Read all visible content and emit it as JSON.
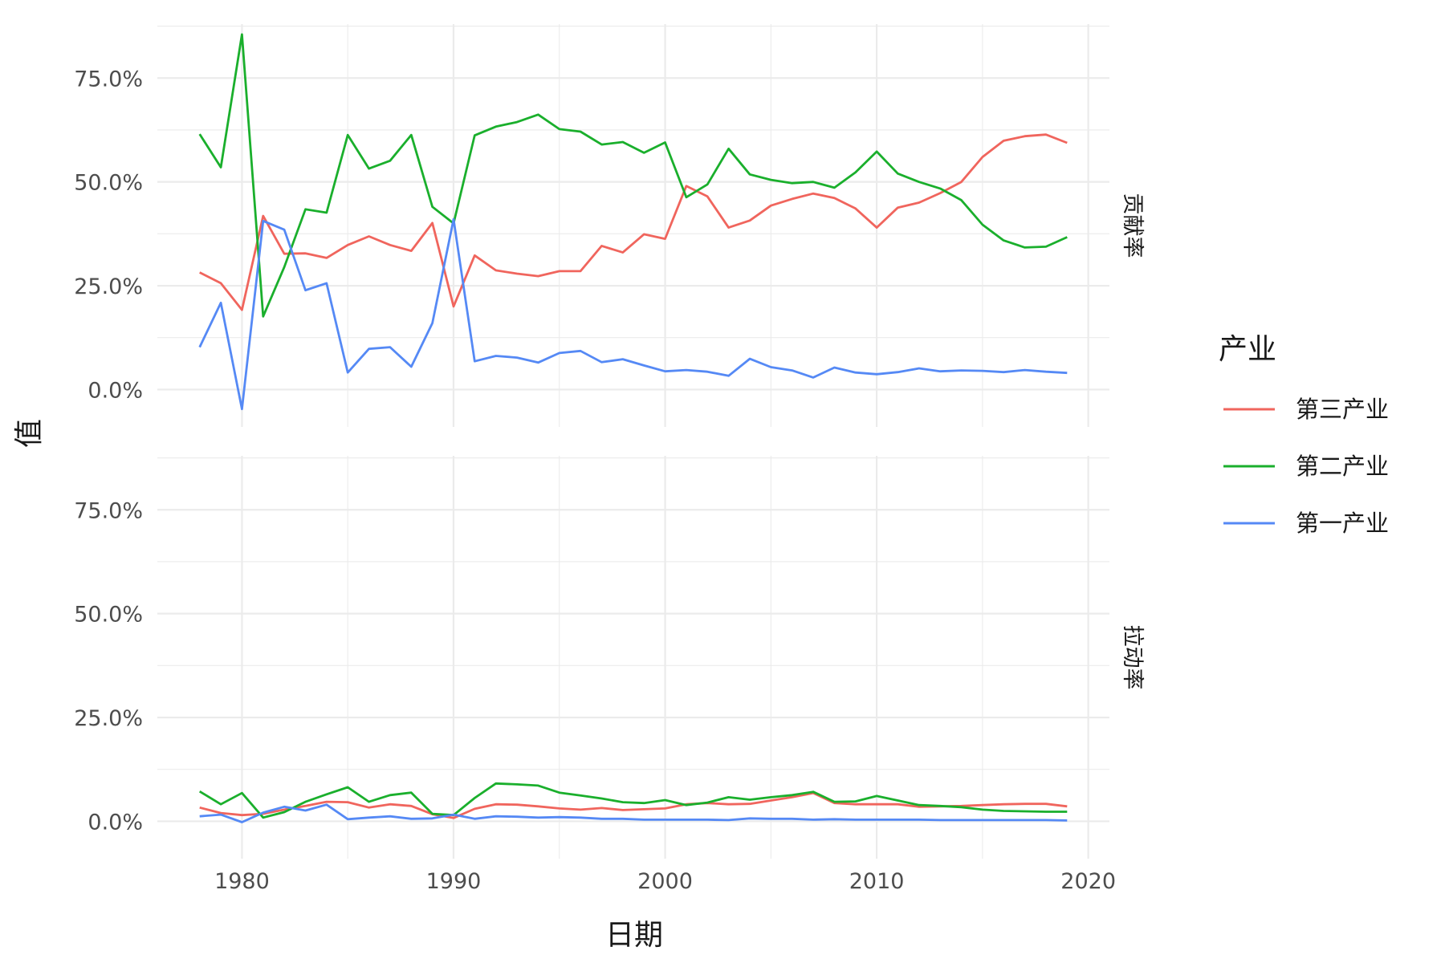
{
  "chart_data": {
    "type": "line",
    "xlabel": "日期",
    "ylabel": "值",
    "xlim": [
      1976,
      2021
    ],
    "ylim": [
      -0.09,
      0.88
    ],
    "x_ticks": [
      1980,
      1990,
      2000,
      2010,
      2020
    ],
    "x_tick_labels": [
      "1980",
      "1990",
      "2000",
      "2010",
      "2020"
    ],
    "y_ticks": [
      0,
      0.25,
      0.5,
      0.75
    ],
    "y_tick_labels": [
      "0.0%",
      "25.0%",
      "50.0%",
      "75.0%"
    ],
    "grid": true,
    "legend": {
      "title": "产业",
      "position": "right",
      "entries": [
        "第三产业",
        "第二产业",
        "第一产业"
      ]
    },
    "colors": {
      "第三产业": "#f0655d",
      "第二产业": "#1aaf2c",
      "第一产业": "#5589f5"
    },
    "x": [
      1978,
      1979,
      1980,
      1981,
      1982,
      1983,
      1984,
      1985,
      1986,
      1987,
      1988,
      1989,
      1990,
      1991,
      1992,
      1993,
      1994,
      1995,
      1996,
      1997,
      1998,
      1999,
      2000,
      2001,
      2002,
      2003,
      2004,
      2005,
      2006,
      2007,
      2008,
      2009,
      2010,
      2011,
      2012,
      2013,
      2014,
      2015,
      2016,
      2017,
      2018,
      2019
    ],
    "facets": [
      {
        "strip": "贡献率",
        "series": [
          {
            "name": "第三产业",
            "values": [
              0.282,
              0.256,
              0.192,
              0.418,
              0.327,
              0.328,
              0.317,
              0.348,
              0.369,
              0.348,
              0.334,
              0.401,
              0.2,
              0.323,
              0.287,
              0.279,
              0.273,
              0.285,
              0.285,
              0.346,
              0.33,
              0.374,
              0.363,
              0.49,
              0.465,
              0.39,
              0.407,
              0.443,
              0.459,
              0.472,
              0.461,
              0.436,
              0.39,
              0.438,
              0.45,
              0.473,
              0.5,
              0.56,
              0.599,
              0.61,
              0.614,
              0.594
            ]
          },
          {
            "name": "第二产业",
            "values": [
              0.615,
              0.535,
              0.855,
              0.176,
              0.295,
              0.434,
              0.426,
              0.613,
              0.532,
              0.551,
              0.613,
              0.44,
              0.4,
              0.612,
              0.633,
              0.644,
              0.662,
              0.627,
              0.621,
              0.59,
              0.596,
              0.57,
              0.595,
              0.463,
              0.494,
              0.58,
              0.518,
              0.505,
              0.497,
              0.5,
              0.486,
              0.523,
              0.573,
              0.52,
              0.5,
              0.484,
              0.456,
              0.397,
              0.359,
              0.342,
              0.344,
              0.367
            ]
          },
          {
            "name": "第一产业",
            "values": [
              0.102,
              0.209,
              -0.047,
              0.406,
              0.385,
              0.239,
              0.256,
              0.041,
              0.098,
              0.102,
              0.055,
              0.16,
              0.41,
              0.068,
              0.081,
              0.077,
              0.065,
              0.088,
              0.093,
              0.066,
              0.073,
              0.058,
              0.044,
              0.047,
              0.043,
              0.033,
              0.074,
              0.054,
              0.046,
              0.029,
              0.053,
              0.041,
              0.037,
              0.042,
              0.051,
              0.044,
              0.046,
              0.045,
              0.042,
              0.047,
              0.043,
              0.04
            ]
          }
        ]
      },
      {
        "strip": "拉动率",
        "series": [
          {
            "name": "第三产业",
            "values": [
              0.033,
              0.02,
              0.015,
              0.018,
              0.028,
              0.037,
              0.047,
              0.046,
              0.033,
              0.041,
              0.037,
              0.017,
              0.008,
              0.03,
              0.041,
              0.04,
              0.036,
              0.031,
              0.028,
              0.032,
              0.027,
              0.029,
              0.031,
              0.041,
              0.044,
              0.041,
              0.042,
              0.05,
              0.058,
              0.068,
              0.044,
              0.041,
              0.041,
              0.041,
              0.035,
              0.036,
              0.037,
              0.039,
              0.041,
              0.042,
              0.042,
              0.036
            ]
          },
          {
            "name": "第二产业",
            "values": [
              0.072,
              0.041,
              0.068,
              0.009,
              0.022,
              0.047,
              0.065,
              0.082,
              0.047,
              0.063,
              0.069,
              0.018,
              0.015,
              0.056,
              0.091,
              0.089,
              0.086,
              0.069,
              0.062,
              0.055,
              0.046,
              0.044,
              0.051,
              0.039,
              0.045,
              0.058,
              0.052,
              0.058,
              0.063,
              0.071,
              0.047,
              0.048,
              0.061,
              0.05,
              0.039,
              0.037,
              0.034,
              0.028,
              0.025,
              0.024,
              0.023,
              0.023
            ]
          },
          {
            "name": "第一产业",
            "values": [
              0.012,
              0.016,
              -0.002,
              0.021,
              0.035,
              0.026,
              0.04,
              0.005,
              0.009,
              0.012,
              0.006,
              0.007,
              0.016,
              0.006,
              0.012,
              0.011,
              0.009,
              0.01,
              0.009,
              0.006,
              0.006,
              0.004,
              0.004,
              0.004,
              0.004,
              0.003,
              0.007,
              0.006,
              0.006,
              0.004,
              0.005,
              0.004,
              0.004,
              0.004,
              0.004,
              0.003,
              0.003,
              0.003,
              0.003,
              0.003,
              0.003,
              0.002
            ]
          }
        ]
      }
    ]
  }
}
